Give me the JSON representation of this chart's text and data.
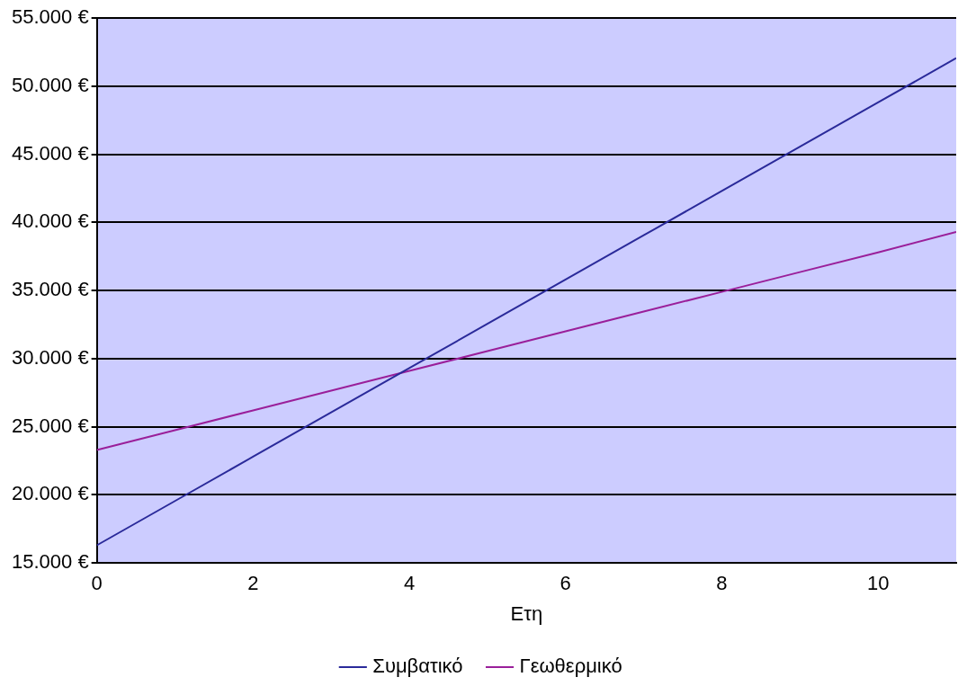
{
  "chart_data": {
    "type": "line",
    "xlabel": "Ετη",
    "x": [
      0,
      1,
      2,
      3,
      4,
      5,
      6,
      7,
      8,
      9,
      10,
      11
    ],
    "series": [
      {
        "name": "Συμβατικό",
        "color": "#2a2a9a",
        "values": [
          16300,
          19550,
          22800,
          26050,
          29300,
          32550,
          35800,
          39050,
          42300,
          45550,
          48800,
          52050
        ]
      },
      {
        "name": "Γεωθερμικό",
        "color": "#9a1f9a",
        "values": [
          23300,
          24750,
          26200,
          27650,
          29100,
          30550,
          32000,
          33450,
          34900,
          36350,
          37800,
          39300
        ]
      }
    ],
    "xlim": [
      0,
      11
    ],
    "xticks": [
      0,
      2,
      4,
      6,
      8,
      10
    ],
    "ylim": [
      15000,
      55000
    ],
    "yticks": [
      {
        "value": 15000,
        "label": "15.000 €"
      },
      {
        "value": 20000,
        "label": "20.000 €"
      },
      {
        "value": 25000,
        "label": "25.000 €"
      },
      {
        "value": 30000,
        "label": "30.000 €"
      },
      {
        "value": 35000,
        "label": "35.000 €"
      },
      {
        "value": 40000,
        "label": "40.000 €"
      },
      {
        "value": 45000,
        "label": "45.000 €"
      },
      {
        "value": 50000,
        "label": "50.000 €"
      },
      {
        "value": 55000,
        "label": "55.000 €"
      }
    ],
    "grid": "y",
    "legend": "bottom",
    "marker": "none",
    "line_style": "solid"
  }
}
